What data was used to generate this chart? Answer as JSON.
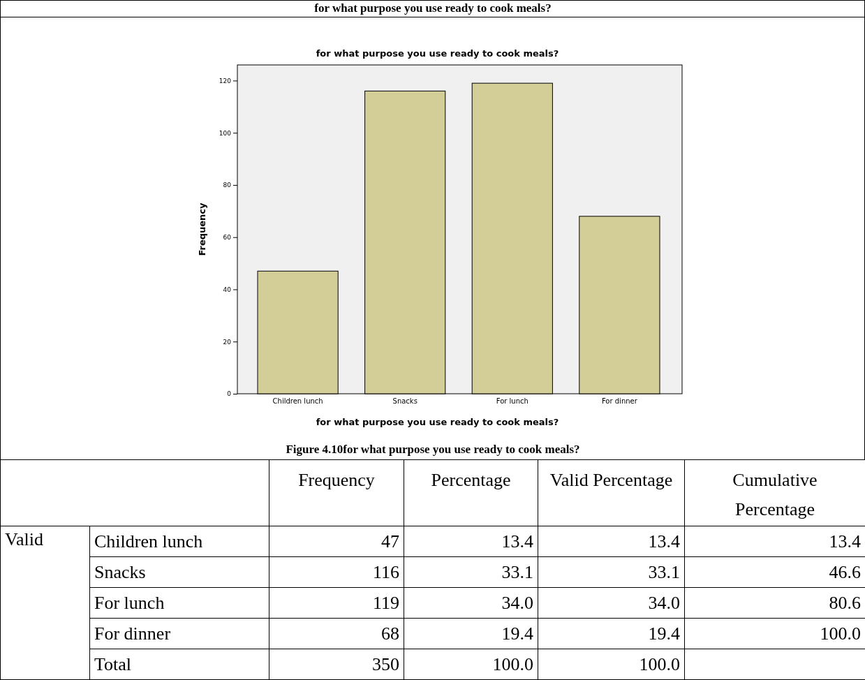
{
  "chart_data": [
    {
      "type": "bar",
      "title": "for what purpose you use ready to cook meals?",
      "xlabel": "for what purpose you use ready to cook meals?",
      "ylabel": "Frequency",
      "categories": [
        "Children lunch",
        "Snacks",
        "For lunch",
        "For dinner"
      ],
      "values": [
        47,
        116,
        119,
        68
      ],
      "color": "#d3ce98",
      "ylim": [
        0,
        126
      ],
      "yticks": [
        0,
        20,
        40,
        60,
        80,
        100,
        120
      ],
      "grid": false,
      "annotations": [
        "for what purpose you use ready to cook meals?",
        "Figure 4.10for what purpose you use ready to cook meals?"
      ]
    },
    {
      "type": "other",
      "categories": [
        "Children lunch",
        "Snacks",
        "For lunch",
        "For dinner",
        "Total"
      ],
      "annotations": [
        "Valid"
      ],
      "series": [
        {
          "name": "Frequency",
          "values": [
            47,
            116,
            119,
            68,
            350
          ],
          "value_labels": [
            "47",
            "116",
            "119",
            "68",
            "350"
          ]
        },
        {
          "name": "Percentage",
          "values": [
            13.4,
            33.1,
            34.0,
            19.4,
            100.0
          ],
          "value_labels": [
            "13.4",
            "33.1",
            "34.0",
            "19.4",
            "100.0"
          ]
        },
        {
          "name": "Valid Percentage",
          "values": [
            13.4,
            33.1,
            34.0,
            19.4,
            100.0
          ],
          "value_labels": [
            "13.4",
            "33.1",
            "34.0",
            "19.4",
            "100.0"
          ]
        },
        {
          "name": "Cumulative Percentage",
          "values": [
            13.4,
            46.6,
            80.6,
            100.0,
            null
          ],
          "value_labels": [
            "13.4",
            "46.6",
            "80.6",
            "100.0",
            null
          ]
        }
      ]
    }
  ]
}
